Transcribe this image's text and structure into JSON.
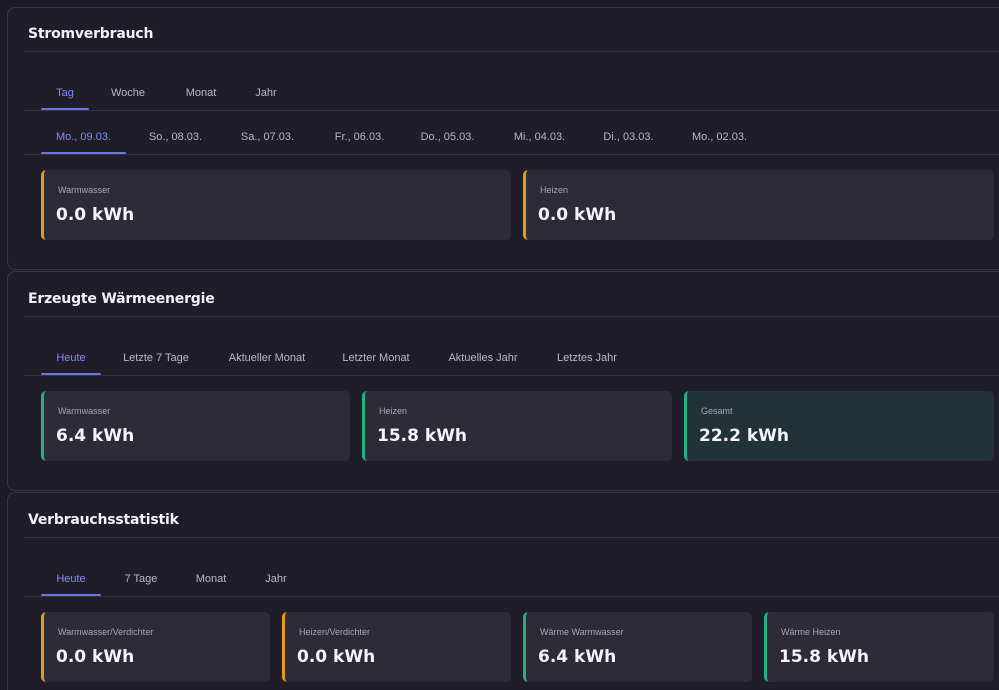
{
  "colors": {
    "accent": "#6977e6",
    "warning_border": "#e39b1b",
    "success_border": "#23b27c",
    "card_bg": "#2c2b37",
    "highlight_card_bg": "#213336"
  },
  "stromverbrauch": {
    "title": "Stromverbrauch",
    "period_tabs": [
      "Tag",
      "Woche",
      "Monat",
      "Jahr"
    ],
    "day_tabs": [
      "Mo., 09.03.",
      "So., 08.03.",
      "Sa., 07.03.",
      "Fr., 06.03.",
      "Do., 05.03.",
      "Mi., 04.03.",
      "Di., 03.03.",
      "Mo., 02.03."
    ],
    "cards": [
      {
        "label": "Warmwasser",
        "value": "0.0 kWh"
      },
      {
        "label": "Heizen",
        "value": "0.0 kWh"
      }
    ]
  },
  "waermeenergie": {
    "title": "Erzeugte Wärmeenergie",
    "tabs": [
      "Heute",
      "Letzte 7 Tage",
      "Aktueller Monat",
      "Letzter Monat",
      "Aktuelles Jahr",
      "Letztes Jahr"
    ],
    "cards": [
      {
        "label": "Warmwasser",
        "value": "6.4 kWh"
      },
      {
        "label": "Heizen",
        "value": "15.8 kWh"
      },
      {
        "label": "Gesamt",
        "value": "22.2 kWh"
      }
    ]
  },
  "verbrauchsstatistik": {
    "title": "Verbrauchsstatistik",
    "tabs": [
      "Heute",
      "7 Tage",
      "Monat",
      "Jahr"
    ],
    "cards": [
      {
        "label": "Warmwasser/Verdichter",
        "value": "0.0 kWh"
      },
      {
        "label": "Heizen/Verdichter",
        "value": "0.0 kWh"
      },
      {
        "label": "Wärme Warmwasser",
        "value": "6.4 kWh"
      },
      {
        "label": "Wärme Heizen",
        "value": "15.8 kWh"
      }
    ]
  }
}
